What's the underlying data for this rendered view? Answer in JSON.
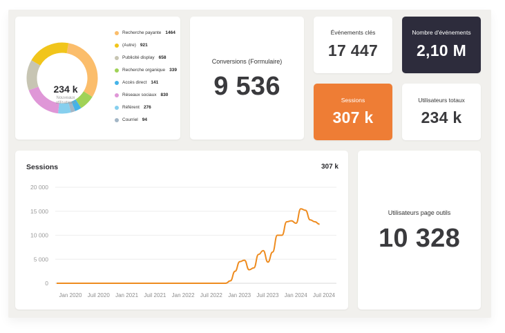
{
  "donut": {
    "center_value": "234 k",
    "center_label_line1": "Nouveaux",
    "center_label_line2": "utilisateurs",
    "legend": [
      {
        "label": "Recherche payante",
        "value": "1464",
        "color": "#fbbd6b"
      },
      {
        "label": "(Autre)",
        "value": "921",
        "color": "#f1c51b"
      },
      {
        "label": "Publicité display",
        "value": "658",
        "color": "#c7c5b3"
      },
      {
        "label": "Recherche organique",
        "value": "339",
        "color": "#a0d257"
      },
      {
        "label": "Accès direct",
        "value": "141",
        "color": "#44b3e8"
      },
      {
        "label": "Réseaux sociaux",
        "value": "830",
        "color": "#df97d7"
      },
      {
        "label": "Référent",
        "value": "276",
        "color": "#86cfee"
      },
      {
        "label": "Courriel",
        "value": "94",
        "color": "#a3b6c6"
      }
    ]
  },
  "kpis": {
    "conversions": {
      "title": "Conversions (Formulaire)",
      "value": "9 536"
    },
    "key_events": {
      "title": "Événements clés",
      "value": "17 447"
    },
    "event_count": {
      "title": "Nombre d'événements",
      "value": "2,10 M",
      "color": "#2d2c3c"
    },
    "sessions": {
      "title": "Sessions",
      "value": "307 k",
      "color": "#ee7d35"
    },
    "total_users": {
      "title": "Utilisateurs totaux",
      "value": "234 k"
    },
    "tool_page_users": {
      "title": "Utilisateurs page outils",
      "value": "10 328"
    }
  },
  "chart_data": {
    "type": "line",
    "title": "Sessions",
    "total": "307 k",
    "ylim": [
      0,
      20000
    ],
    "y_ticks": [
      "20 000",
      "15 000",
      "10 000",
      "5 000",
      "0"
    ],
    "x_ticks": [
      "Jan 2020",
      "Juil 2020",
      "Jan 2021",
      "Juil 2021",
      "Jan 2022",
      "Juil 2022",
      "Jan 2023",
      "Juil 2023",
      "Jan 2024",
      "Juil 2024"
    ],
    "grid": true,
    "line_color": "#ee8b1e",
    "series": [
      {
        "values": [
          [
            0,
            0
          ],
          [
            36,
            0
          ],
          [
            37,
            500
          ],
          [
            38,
            2500
          ],
          [
            39,
            4500
          ],
          [
            40,
            4800
          ],
          [
            41,
            2800
          ],
          [
            42,
            3200
          ],
          [
            43,
            6000
          ],
          [
            44,
            6800
          ],
          [
            45,
            4400
          ],
          [
            46,
            6500
          ],
          [
            47,
            10000
          ],
          [
            48,
            10000
          ],
          [
            49,
            12800
          ],
          [
            50,
            13000
          ],
          [
            51,
            12500
          ],
          [
            52,
            15500
          ],
          [
            53,
            15200
          ],
          [
            54,
            13200
          ],
          [
            55,
            12800
          ],
          [
            56,
            12300
          ]
        ]
      }
    ]
  }
}
